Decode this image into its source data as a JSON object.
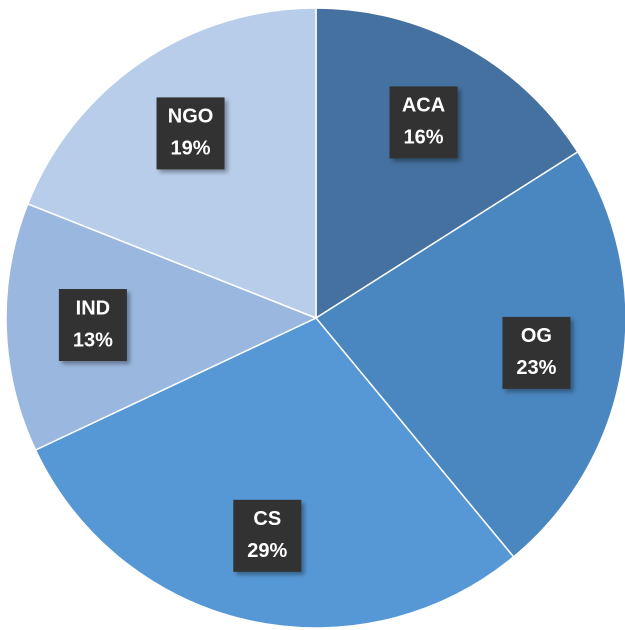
{
  "chart_data": {
    "type": "pie",
    "categories": [
      "ACA",
      "OG",
      "CS",
      "IND",
      "NGO"
    ],
    "values": [
      16,
      23,
      29,
      13,
      19
    ],
    "value_labels": [
      "16%",
      "23%",
      "29%",
      "13%",
      "19%"
    ],
    "colors": [
      "#44719f",
      "#4a86bf",
      "#5698d6",
      "#9ab8df",
      "#b8cde9"
    ]
  }
}
